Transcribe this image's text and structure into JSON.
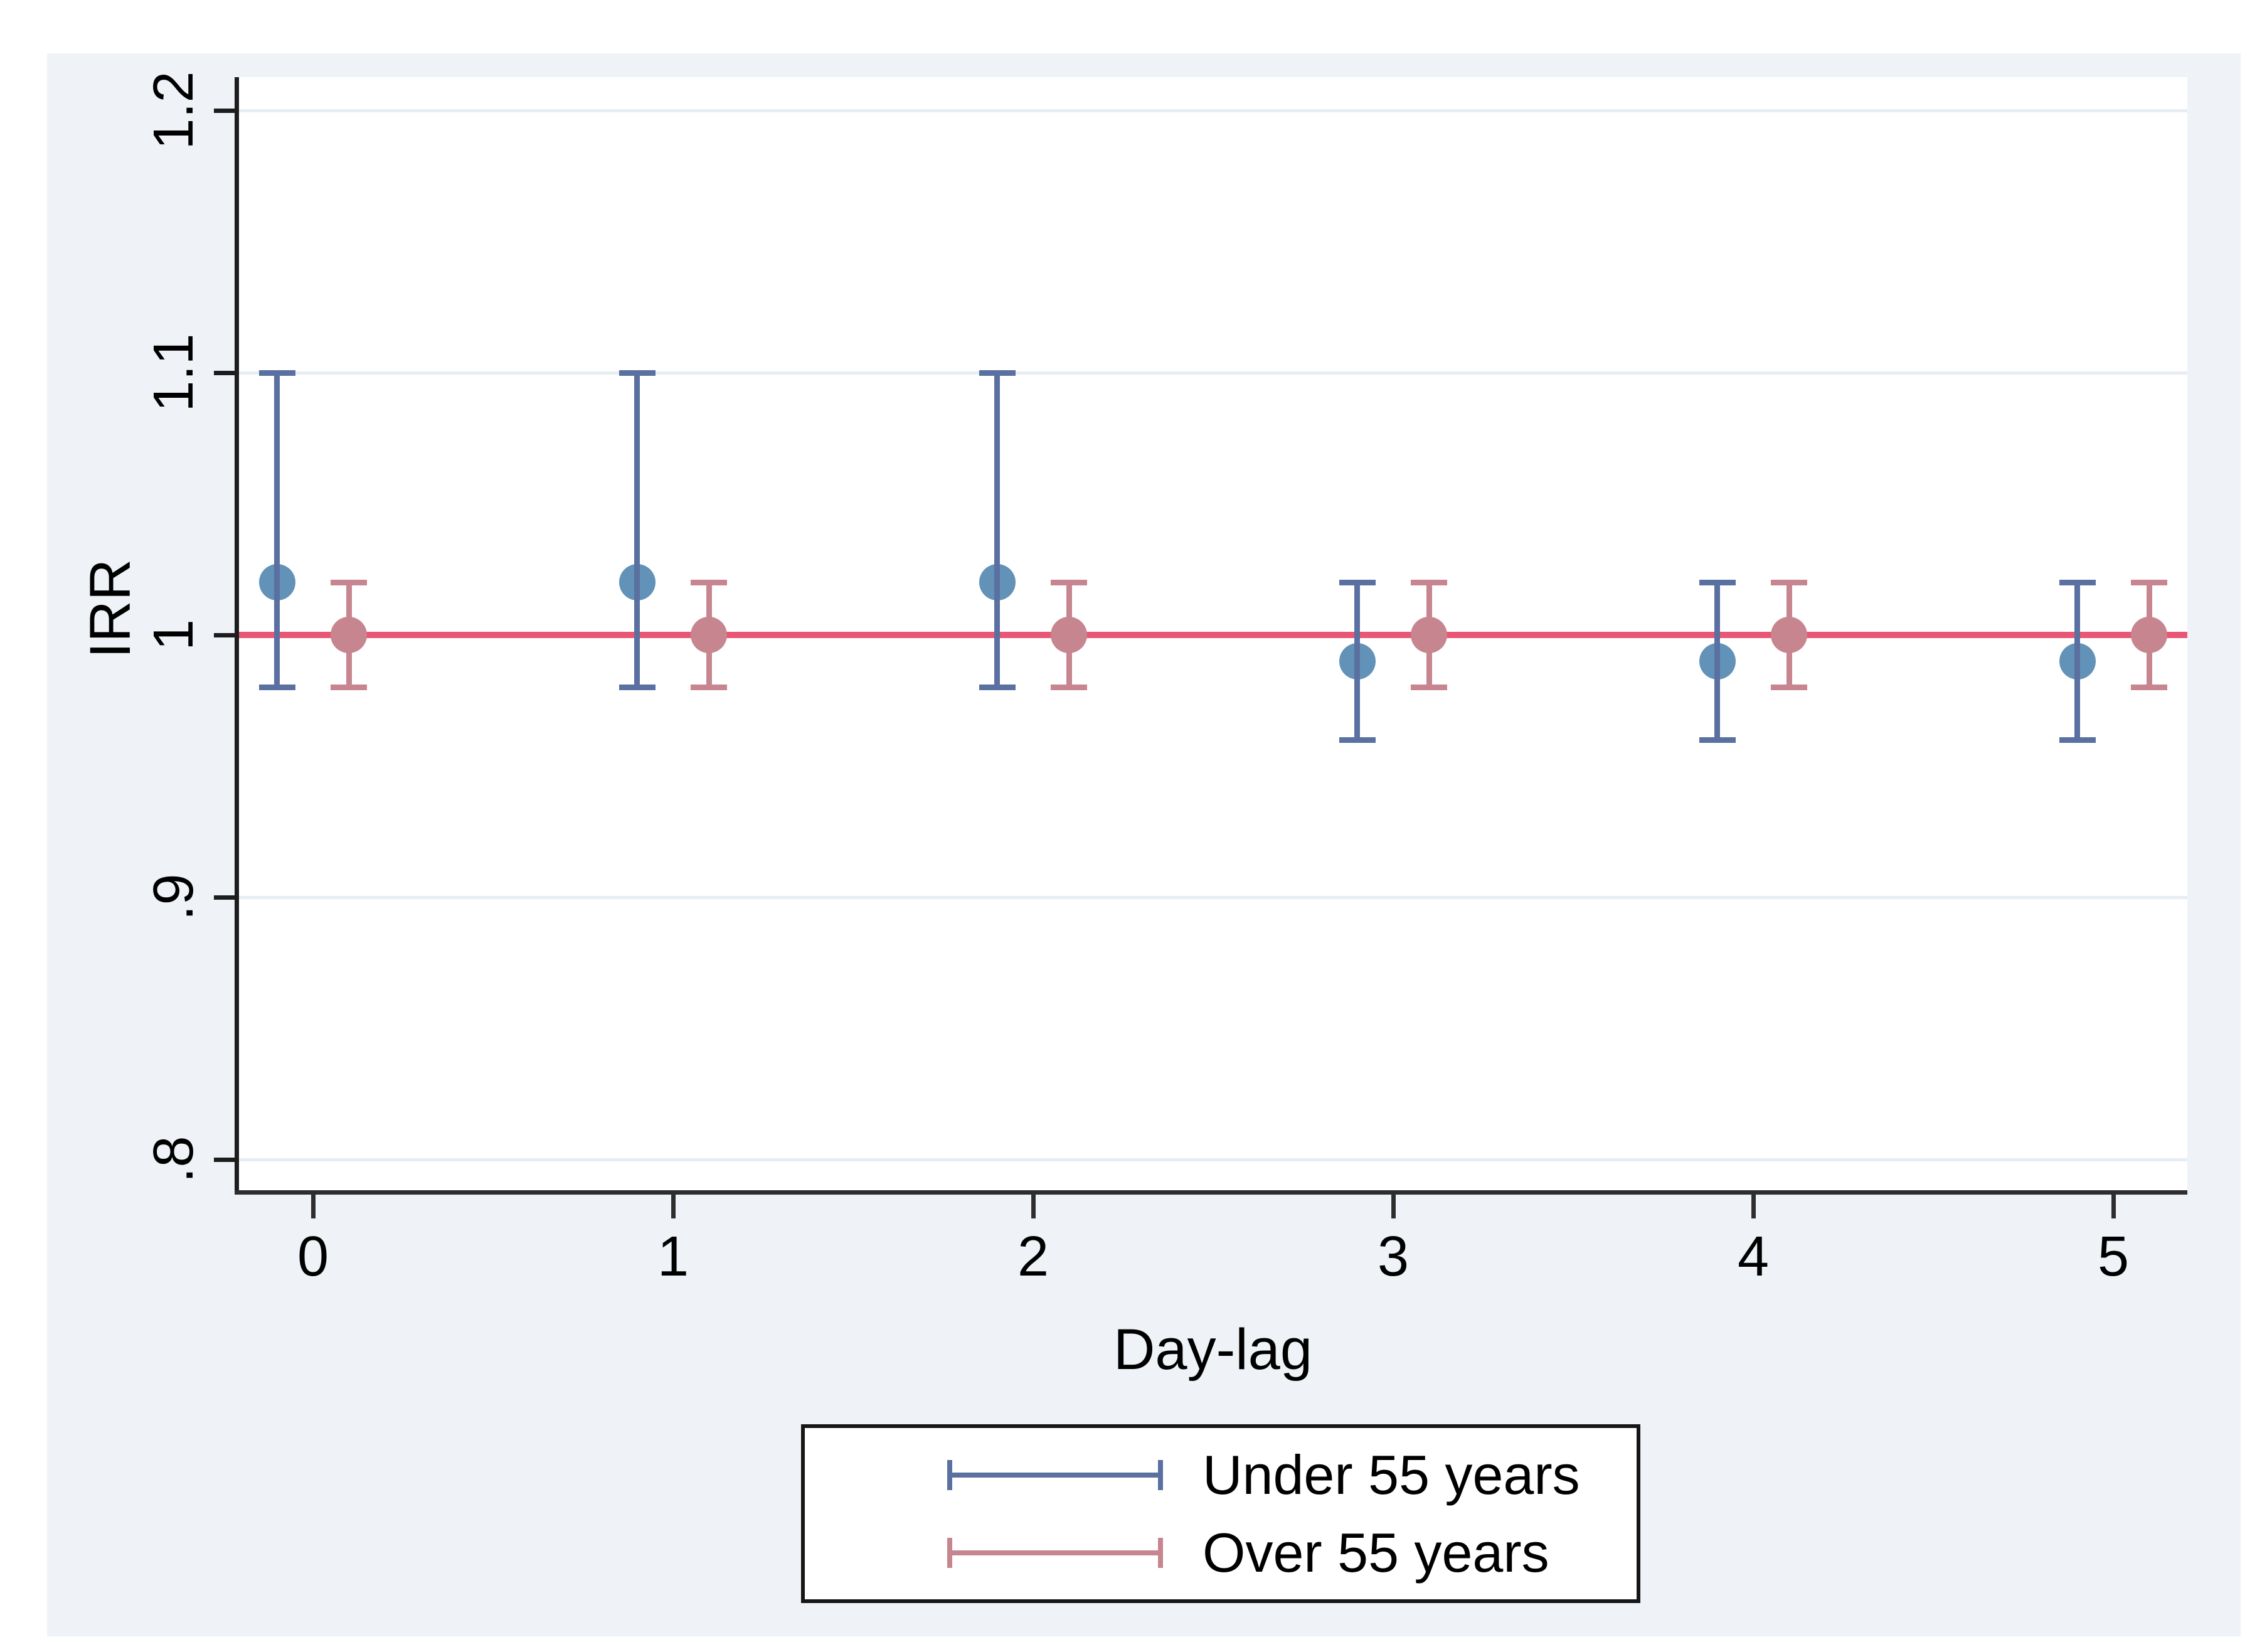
{
  "figure": {
    "background_color": "#ffffff",
    "panel_background_color": "#eff3f7",
    "plot_background_color": "#ffffff",
    "axis_color": "#1d1d1d",
    "gridline_color": "#e6edf3",
    "text_color": "#000000"
  },
  "chart_data": {
    "type": "scatter",
    "subtype": "errorbar",
    "title": "",
    "xlabel": "Day-lag",
    "ylabel": "IRR",
    "grid": "horizontal faint gridlines at major y ticks",
    "legend_position": "bottom center, boxed",
    "xlim": [
      -0.21,
      5.21
    ],
    "ylim": [
      0.787,
      1.213
    ],
    "x_ticks": [
      {
        "label": "0",
        "value": 0
      },
      {
        "label": "1",
        "value": 1
      },
      {
        "label": "2",
        "value": 2
      },
      {
        "label": "3",
        "value": 3
      },
      {
        "label": "4",
        "value": 4
      },
      {
        "label": "5",
        "value": 5
      }
    ],
    "y_ticks": [
      {
        "label": "1.2",
        "value": 1.2
      },
      {
        "label": "1.1",
        "value": 1.1
      },
      {
        "label": "1",
        "value": 1.0
      },
      {
        "label": ".9",
        "value": 0.9
      },
      {
        "label": ".8",
        "value": 0.8
      }
    ],
    "gridline_values": [
      0.8,
      0.9,
      1.1,
      1.2
    ],
    "reference_line": {
      "y": 1.0,
      "color": "#ea5675"
    },
    "series": [
      {
        "name": "Under 55 years",
        "marker_color": "#6292b8",
        "bar_color": "#5a70a0",
        "x_offset": -0.1,
        "points": [
          {
            "x": 0,
            "irr": 1.02,
            "ci_low": 0.98,
            "ci_high": 1.1
          },
          {
            "x": 1,
            "irr": 1.02,
            "ci_low": 0.98,
            "ci_high": 1.1
          },
          {
            "x": 2,
            "irr": 1.02,
            "ci_low": 0.98,
            "ci_high": 1.1
          },
          {
            "x": 3,
            "irr": 0.99,
            "ci_low": 0.96,
            "ci_high": 1.02
          },
          {
            "x": 4,
            "irr": 0.99,
            "ci_low": 0.96,
            "ci_high": 1.02
          },
          {
            "x": 5,
            "irr": 0.99,
            "ci_low": 0.96,
            "ci_high": 1.02
          }
        ]
      },
      {
        "name": "Over 55 years",
        "marker_color": "#c6858f",
        "bar_color": "#c6858f",
        "x_offset": 0.1,
        "points": [
          {
            "x": 0,
            "irr": 1.0,
            "ci_low": 0.98,
            "ci_high": 1.02
          },
          {
            "x": 1,
            "irr": 1.0,
            "ci_low": 0.98,
            "ci_high": 1.02
          },
          {
            "x": 2,
            "irr": 1.0,
            "ci_low": 0.98,
            "ci_high": 1.02
          },
          {
            "x": 3,
            "irr": 1.0,
            "ci_low": 0.98,
            "ci_high": 1.02
          },
          {
            "x": 4,
            "irr": 1.0,
            "ci_low": 0.98,
            "ci_high": 1.02
          },
          {
            "x": 5,
            "irr": 1.0,
            "ci_low": 0.98,
            "ci_high": 1.02
          }
        ]
      }
    ]
  }
}
